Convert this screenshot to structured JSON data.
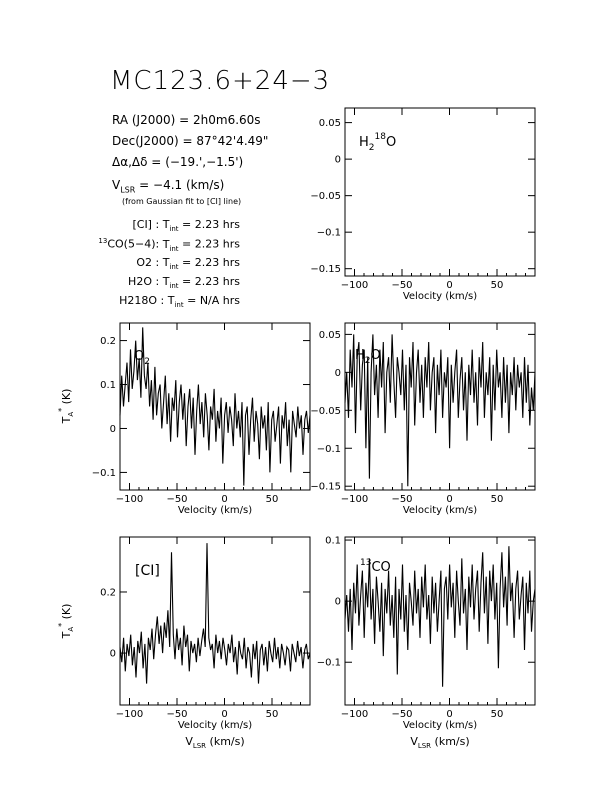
{
  "header": {
    "title": "MC123.6+24−3",
    "ra_label": "RA (J2000) =",
    "ra_value": "2h0m6.60s",
    "dec_label": "Dec(J2000) =",
    "dec_value": "87°42'4.49\"",
    "offset_label": "Δα,Δδ =",
    "offset_value": "(−19.',−1.5')",
    "vlsr_label": "V",
    "vlsr_sub": "LSR",
    "vlsr_value": "= −4.1 (km/s)",
    "vlsr_note": "(from Gaussian fit to [CI] line)"
  },
  "integration": [
    {
      "line": "[CI] :",
      "sup": "",
      "tint": "2.23 hrs"
    },
    {
      "line": "CO(5−4):",
      "sup": "13",
      "tint": "2.23 hrs"
    },
    {
      "line": "O2 :",
      "sup": "",
      "tint": "2.23 hrs"
    },
    {
      "line": "H2O :",
      "sup": "",
      "tint": "2.23 hrs"
    },
    {
      "line": "H218O :",
      "sup": "",
      "tint": "N/A hrs"
    }
  ],
  "tint_label": "T",
  "tint_sub": "int",
  "axis": {
    "velocity_label": "Velocity (km/s)",
    "vlsr_label": "V",
    "vlsr_sub": "LSR",
    "vlsr_unit": "(km/s)",
    "ta_label": "T",
    "ta_sup": "*",
    "ta_sub": "A",
    "ta_unit": "(K)"
  },
  "chart_data": [
    {
      "type": "line",
      "panel": "H2_18O",
      "label": "H",
      "xlim": [
        -110,
        90
      ],
      "ylim": [
        -0.16,
        0.07
      ],
      "xticks": [
        -100,
        -50,
        0,
        50
      ],
      "yticks": [
        0.05,
        0,
        -0.05,
        -0.1,
        -0.15
      ],
      "ytick_labels": [
        "0.05",
        "0",
        "−0.05",
        "−0.1",
        "−0.15"
      ],
      "xlabel": "Velocity (km/s)",
      "ylabel": "",
      "values": []
    },
    {
      "type": "line",
      "panel": "O2",
      "label": "O",
      "xlim": [
        -110,
        90
      ],
      "ylim": [
        -0.14,
        0.24
      ],
      "xticks": [
        -100,
        -50,
        0,
        50
      ],
      "yticks": [
        0.2,
        0.1,
        0,
        -0.1
      ],
      "ytick_labels": [
        "0.2",
        "0.1",
        "0",
        "−0.1"
      ],
      "xlabel": "Velocity (km/s)",
      "ylabel": "T*A (K)",
      "values": [
        0.03,
        0.12,
        0.05,
        0.1,
        0.15,
        0.06,
        0.18,
        0.09,
        0.13,
        0.2,
        0.11,
        0.16,
        0.07,
        0.23,
        0.12,
        0.09,
        0.15,
        0.05,
        0.11,
        0.02,
        0.14,
        0.03,
        0.08,
        0.1,
        0.0,
        0.06,
        0.12,
        0.01,
        0.08,
        -0.03,
        0.07,
        0.04,
        0.11,
        -0.02,
        0.06,
        0.1,
        0.02,
        0.08,
        -0.04,
        0.05,
        0.09,
        0.0,
        0.07,
        -0.06,
        0.04,
        0.1,
        0.01,
        0.06,
        -0.02,
        0.08,
        0.03,
        -0.05,
        0.05,
        0.02,
        0.09,
        -0.03,
        0.04,
        0.0,
        0.07,
        -0.08,
        0.03,
        0.06,
        -0.01,
        0.05,
        0.02,
        -0.04,
        0.08,
        0.0,
        0.04,
        -0.02,
        0.06,
        -0.13,
        0.03,
        0.05,
        -0.06,
        0.02,
        0.07,
        -0.03,
        0.04,
        0.01,
        -0.07,
        0.05,
        0.0,
        0.03,
        -0.05,
        0.06,
        -0.1,
        0.02,
        0.04,
        -0.03,
        0.01,
        0.05,
        -0.08,
        0.03,
        0.0,
        0.06,
        -0.04,
        0.02,
        -0.1,
        0.04,
        0.01,
        -0.02,
        0.05,
        0.0,
        0.03,
        -0.06,
        0.02,
        0.04,
        -0.01,
        0.03
      ]
    },
    {
      "type": "line",
      "panel": "H2O",
      "label": "H",
      "xlim": [
        -110,
        90
      ],
      "ylim": [
        -0.155,
        0.065
      ],
      "xticks": [
        -100,
        -50,
        0,
        50
      ],
      "yticks": [
        0.05,
        0,
        -0.05,
        -0.1,
        -0.15
      ],
      "ytick_labels": [
        "0.05",
        "0",
        "−0.05",
        "−0.1",
        "−0.15"
      ],
      "xlabel": "Velocity (km/s)",
      "ylabel": "",
      "values": [
        -0.04,
        0.0,
        -0.06,
        0.03,
        -0.02,
        0.05,
        -0.08,
        0.02,
        0.04,
        -0.05,
        0.01,
        0.03,
        -0.1,
        0.02,
        -0.14,
        0.0,
        0.05,
        -0.03,
        0.01,
        -0.06,
        0.03,
        -0.02,
        0.04,
        -0.08,
        0.0,
        0.02,
        -0.04,
        0.05,
        -0.01,
        -0.06,
        0.02,
        0.0,
        -0.03,
        0.03,
        -0.05,
        0.01,
        -0.15,
        0.02,
        -0.02,
        0.04,
        -0.07,
        0.0,
        0.03,
        -0.04,
        0.01,
        -0.06,
        0.02,
        -0.02,
        0.04,
        -0.05,
        0.0,
        0.02,
        -0.08,
        0.01,
        -0.03,
        0.03,
        -0.06,
        0.0,
        -0.02,
        0.02,
        -0.1,
        0.01,
        -0.04,
        0.0,
        0.03,
        -0.06,
        -0.01,
        0.02,
        -0.05,
        0.0,
        -0.09,
        0.01,
        -0.03,
        0.03,
        -0.04,
        0.0,
        -0.07,
        0.02,
        -0.02,
        0.04,
        -0.06,
        0.0,
        -0.03,
        0.02,
        -0.09,
        0.01,
        -0.05,
        0.03,
        -0.02,
        0.0,
        -0.06,
        0.02,
        -0.04,
        0.01,
        -0.08,
        0.0,
        -0.03,
        0.02,
        -0.05,
        0.01,
        -0.02,
        0.0,
        -0.06,
        0.02,
        -0.04,
        0.01,
        -0.07,
        -0.02,
        -0.05,
        0.0
      ]
    },
    {
      "type": "line",
      "panel": "CI",
      "label": "[CI]",
      "xlim": [
        -110,
        90
      ],
      "ylim": [
        -0.17,
        0.38
      ],
      "xticks": [
        -100,
        -50,
        0,
        50
      ],
      "yticks": [
        0.2,
        0
      ],
      "ytick_labels": [
        "0.2",
        "0"
      ],
      "xlabel": "Velocity (km/s)",
      "ylabel": "T*A (K)",
      "values": [
        0.02,
        -0.03,
        0.05,
        -0.06,
        0.03,
        -0.01,
        0.06,
        -0.04,
        0.02,
        -0.08,
        0.04,
        0.0,
        0.07,
        -0.05,
        0.03,
        -0.1,
        0.05,
        0.01,
        0.08,
        -0.02,
        0.06,
        0.12,
        0.03,
        0.09,
        0.0,
        0.1,
        0.05,
        0.14,
        0.02,
        0.33,
        0.06,
        -0.02,
        0.08,
        0.01,
        0.05,
        -0.04,
        0.09,
        0.02,
        0.06,
        -0.06,
        0.04,
        0.0,
        0.03,
        -0.03,
        0.05,
        -0.01,
        0.04,
        0.08,
        0.02,
        0.36,
        0.05,
        0.01,
        0.03,
        -0.05,
        0.06,
        0.0,
        0.04,
        -0.02,
        0.05,
        0.01,
        -0.04,
        0.03,
        0.0,
        0.06,
        -0.03,
        0.02,
        -0.07,
        0.04,
        0.0,
        -0.02,
        0.05,
        -0.05,
        0.02,
        0.0,
        -0.08,
        0.03,
        -0.02,
        0.04,
        -0.1,
        0.01,
        0.03,
        -0.04,
        0.02,
        -0.06,
        0.04,
        0.0,
        -0.03,
        0.05,
        -0.02,
        0.02,
        -0.05,
        0.03,
        0.0,
        -0.04,
        0.02,
        0.01,
        -0.06,
        0.03,
        0.0,
        -0.03,
        0.04,
        -0.01,
        0.02,
        -0.05,
        0.01,
        0.03,
        -0.02,
        0.0
      ]
    },
    {
      "type": "line",
      "panel": "13CO",
      "label": "CO",
      "xlim": [
        -110,
        90
      ],
      "ylim": [
        -0.17,
        0.105
      ],
      "xticks": [
        -100,
        -50,
        0,
        50
      ],
      "yticks": [
        0.1,
        0,
        -0.1
      ],
      "ytick_labels": [
        "0.1",
        "0",
        "−0.1"
      ],
      "xlabel": "Velocity (km/s)",
      "ylabel": "",
      "values": [
        -0.03,
        0.01,
        -0.05,
        0.02,
        -0.08,
        0.03,
        -0.02,
        0.06,
        -0.04,
        0.01,
        0.05,
        -0.06,
        0.03,
        -0.01,
        0.07,
        -0.03,
        0.02,
        -0.07,
        0.04,
        0.0,
        -0.05,
        0.03,
        -0.09,
        0.02,
        -0.02,
        0.05,
        -0.04,
        0.01,
        -0.06,
        0.04,
        -0.12,
        0.02,
        -0.03,
        0.06,
        -0.05,
        0.01,
        -0.08,
        0.03,
        0.0,
        -0.04,
        0.05,
        -0.02,
        0.02,
        -0.06,
        0.04,
        -0.01,
        0.06,
        -0.03,
        0.01,
        -0.07,
        0.04,
        -0.02,
        0.03,
        -0.05,
        0.0,
        0.05,
        -0.14,
        0.02,
        0.04,
        -0.03,
        0.06,
        -0.01,
        0.03,
        -0.06,
        0.05,
        0.0,
        -0.04,
        0.07,
        -0.02,
        0.02,
        -0.08,
        0.04,
        -0.01,
        0.06,
        -0.03,
        0.02,
        0.05,
        -0.05,
        0.03,
        0.08,
        -0.02,
        0.04,
        -0.07,
        0.05,
        0.0,
        0.06,
        -0.03,
        0.03,
        -0.11,
        0.02,
        0.08,
        -0.01,
        0.04,
        -0.04,
        0.09,
        0.0,
        0.03,
        -0.06,
        0.02,
        0.05,
        -0.03,
        0.01,
        0.04,
        -0.08,
        0.03,
        -0.02,
        0.05,
        -0.05,
        0.0,
        0.02
      ]
    }
  ]
}
